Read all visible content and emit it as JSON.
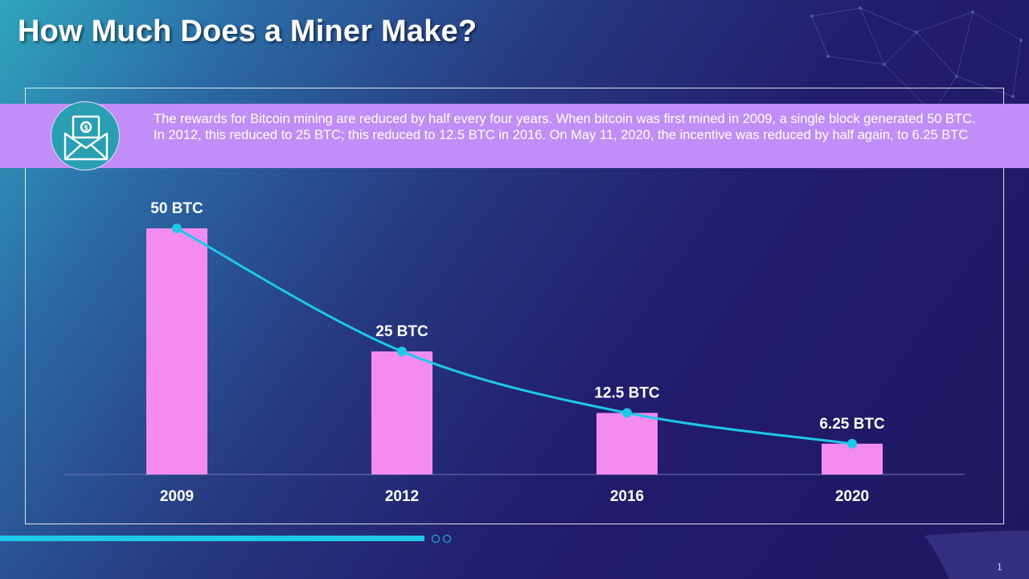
{
  "slide": {
    "title": "How Much Does a Miner Make?",
    "description": "The rewards for Bitcoin mining are reduced by half every four years. When bitcoin was first mined in 2009, a single block generated 50 BTC. In 2012, this reduced to 25 BTC; this reduced to 12.5 BTC in 2016. On May 11, 2020, the incentive was reduced by half again, to 6.25 BTC",
    "icon": "money-envelope-icon",
    "page_number": "1"
  },
  "colors": {
    "bar": "#f48cf0",
    "line": "#1ec8ea",
    "band": "#c08ef6",
    "icon_circle": "#2a9fb3"
  },
  "chart_data": {
    "type": "bar",
    "categories": [
      "2009",
      "2012",
      "2016",
      "2020"
    ],
    "values": [
      50,
      25,
      12.5,
      6.25
    ],
    "data_labels": [
      "50 BTC",
      "25 BTC",
      "12.5 BTC",
      "6.25 BTC"
    ],
    "overlay": "line",
    "title": "",
    "xlabel": "",
    "ylabel": "",
    "ylim": [
      0,
      50
    ],
    "grid": false,
    "legend": "none"
  }
}
